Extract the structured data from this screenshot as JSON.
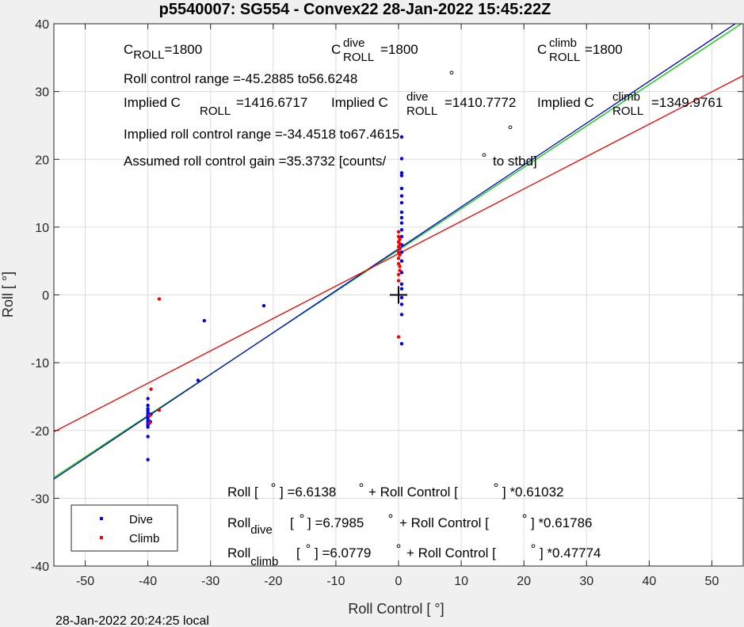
{
  "chart_data": {
    "type": "scatter",
    "title": "p5540007: SG554 - Convex22 28-Jan-2022 15:45:22Z",
    "xlabel": "Roll Control [   °]",
    "ylabel": "Roll [   °]",
    "xlim": [
      -55,
      55
    ],
    "ylim": [
      -40,
      40
    ],
    "xticks": [
      -50,
      -40,
      -30,
      -20,
      -10,
      0,
      10,
      20,
      30,
      40,
      50
    ],
    "yticks": [
      -40,
      -30,
      -20,
      -10,
      0,
      10,
      20,
      30,
      40
    ],
    "grid": true,
    "legend_position": "bottom-left",
    "series": [
      {
        "name": "Dive",
        "color": "#0000ff",
        "points": [
          [
            -40,
            -15.3
          ],
          [
            -40,
            -16.3
          ],
          [
            -40,
            -16.8
          ],
          [
            -40,
            -17.1
          ],
          [
            -40,
            -17.4
          ],
          [
            -40,
            -17.7
          ],
          [
            -40,
            -18.0
          ],
          [
            -40,
            -18.3
          ],
          [
            -40,
            -18.6
          ],
          [
            -40,
            -18.9
          ],
          [
            -40,
            -19.2
          ],
          [
            -40,
            -19.5
          ],
          [
            -40,
            -20.9
          ],
          [
            -40,
            -24.3
          ],
          [
            -39.5,
            -17.6
          ],
          [
            -39.6,
            -18.7
          ],
          [
            -32,
            -12.6
          ],
          [
            -31,
            -3.8
          ],
          [
            -21.5,
            -1.6
          ],
          [
            0.5,
            23.3
          ],
          [
            0.5,
            20.1
          ],
          [
            0.5,
            18.0
          ],
          [
            0.5,
            17.6
          ],
          [
            0.5,
            15.7
          ],
          [
            0.5,
            14.6
          ],
          [
            0.5,
            13.6
          ],
          [
            0.5,
            12.2
          ],
          [
            0.5,
            11.4
          ],
          [
            0.5,
            10.6
          ],
          [
            0.5,
            9.6
          ],
          [
            0.5,
            8.6
          ],
          [
            0.5,
            7.4
          ],
          [
            0.5,
            6.3
          ],
          [
            0.5,
            5.0
          ],
          [
            0.5,
            3.3
          ],
          [
            0.5,
            1.6
          ],
          [
            0.5,
            0.9
          ],
          [
            0.5,
            -0.4
          ],
          [
            0.5,
            -1.4
          ],
          [
            0.5,
            -2.9
          ],
          [
            0.5,
            -7.2
          ]
        ]
      },
      {
        "name": "Climb",
        "color": "#ff0000",
        "points": [
          [
            -38.2,
            -0.6
          ],
          [
            -39.5,
            -13.9
          ],
          [
            -38.2,
            -17.0
          ],
          [
            -39.7,
            -17.8
          ],
          [
            -39.7,
            -18.9
          ],
          [
            0.0,
            -6.2
          ],
          [
            0.0,
            2.1
          ],
          [
            0.0,
            3.0
          ],
          [
            0.0,
            4.6
          ],
          [
            0.0,
            5.4
          ],
          [
            0.0,
            6.3
          ],
          [
            0.0,
            7.1
          ],
          [
            0.0,
            7.8
          ],
          [
            0.0,
            8.6
          ],
          [
            0.0,
            9.3
          ],
          [
            0.2,
            5.9
          ],
          [
            0.2,
            6.8
          ],
          [
            0.2,
            7.5
          ],
          [
            0.2,
            8.2
          ],
          [
            0.2,
            4.2
          ],
          [
            0.2,
            3.6
          ]
        ]
      }
    ],
    "fit_lines": [
      {
        "name": "Roll fit",
        "color": "#00cc00",
        "intercept": 6.6138,
        "slope": 0.61032
      },
      {
        "name": "Dive fit",
        "color": "#0000cc",
        "intercept": 6.7985,
        "slope": 0.61786
      },
      {
        "name": "Climb fit",
        "color": "#ee0000",
        "intercept": 6.0779,
        "slope": 0.47774
      }
    ],
    "center_marker": [
      0,
      0
    ]
  },
  "annotations": {
    "c_roll": {
      "base": "C",
      "sub": "ROLL",
      "value": "=1800"
    },
    "c_roll_dive": {
      "base": "C",
      "sup": "dive",
      "sub": "ROLL",
      "value": "=1800"
    },
    "c_roll_climb": {
      "base": "C",
      "sup": "climb",
      "sub": "ROLL",
      "value": "=1800"
    },
    "roll_control_range": "Roll control range =-45.2885 to56.6248",
    "implied_c_roll": {
      "prefix": "Implied C",
      "sub": "ROLL",
      "value": "=1416.6717"
    },
    "implied_c_roll_dive": {
      "prefix": "Implied C",
      "sup": "dive",
      "sub": "ROLL",
      "value": "=1410.7772"
    },
    "implied_c_roll_climb": {
      "prefix": "Implied C",
      "sup": "climb",
      "sub": "ROLL",
      "value": "=1349.9761"
    },
    "implied_range": "Implied roll control range =-34.4518 to67.4615",
    "gain": {
      "text": "Assumed roll control gain =35.3732 [counts/",
      "suffix": "to stbd]"
    },
    "eq_roll": {
      "prefix": "Roll [",
      "mid": "] =6.6138",
      "plus": "+ Roll Control [",
      "end": "] *0.61032"
    },
    "eq_dive": {
      "prefix": "Roll",
      "sub": "dive",
      "mid": "[",
      "mid2": "] =6.7985",
      "plus": "+ Roll Control [",
      "end": "] *0.61786"
    },
    "eq_climb": {
      "prefix": "Roll",
      "sub": "climb",
      "mid": "[",
      "mid2": "] =6.0779",
      "plus": "+ Roll Control [",
      "end": "] *0.47774"
    },
    "degree": "°"
  },
  "footer": "28-Jan-2022 20:24:25 local"
}
